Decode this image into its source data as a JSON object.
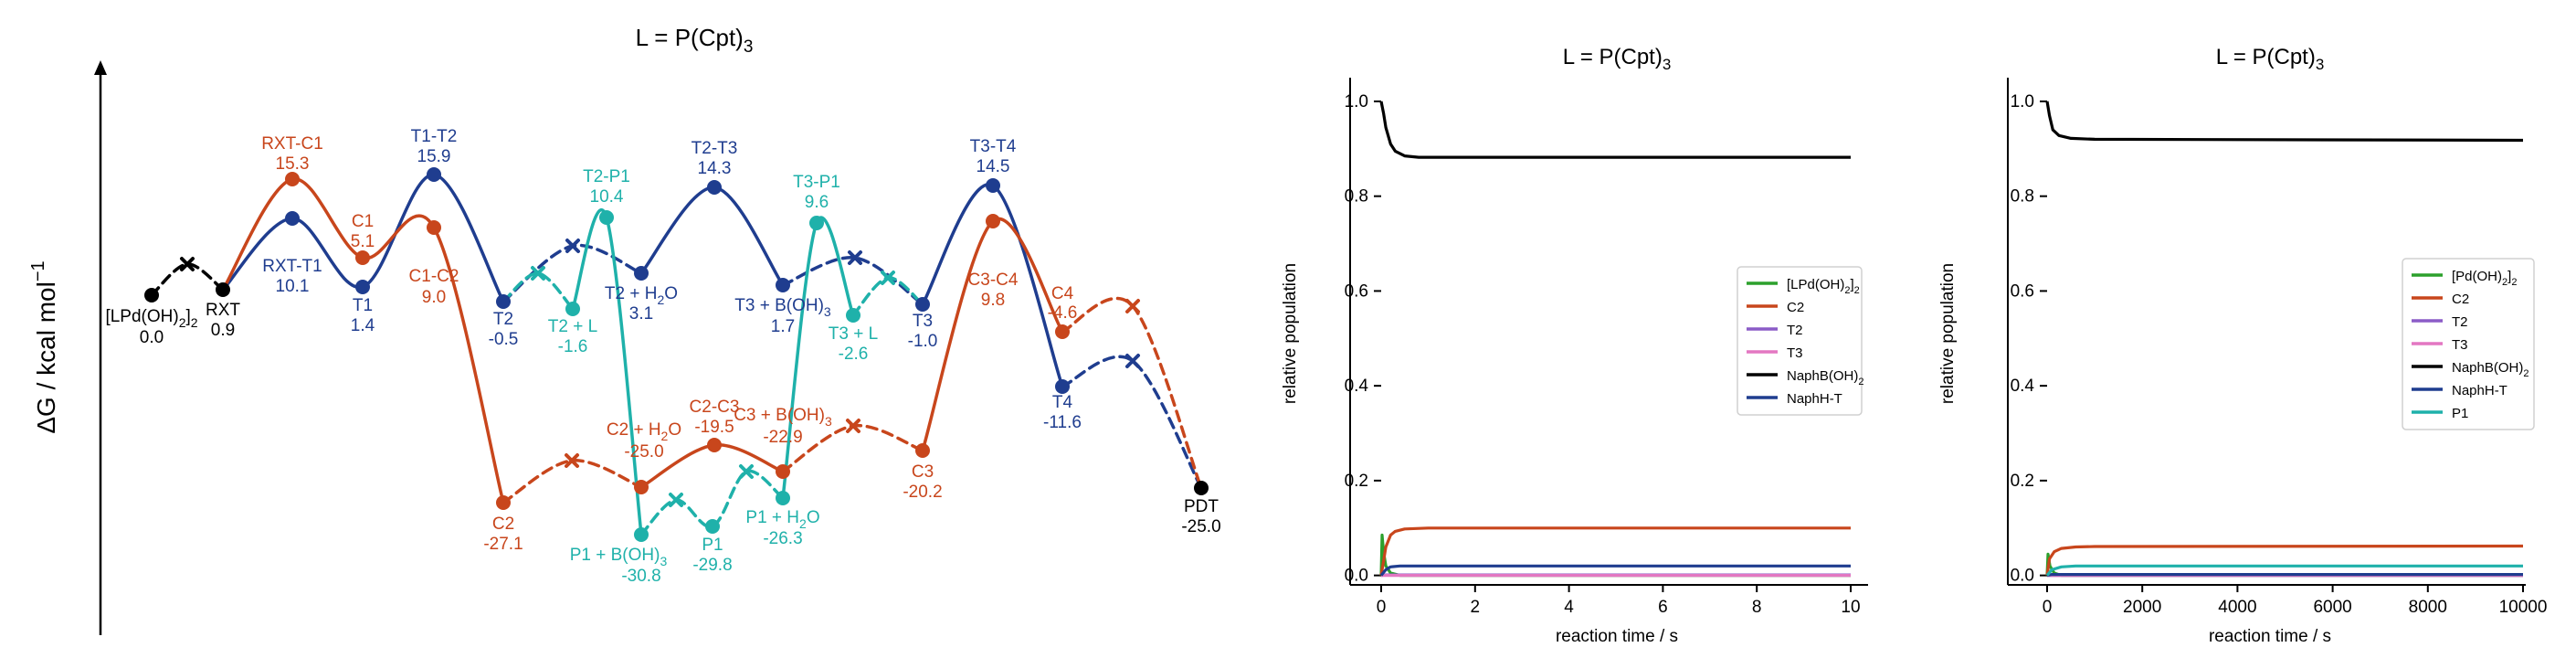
{
  "chart_data": [
    {
      "type": "energy-profile",
      "title": "L = P(Cpt)",
      "title_sub": "3",
      "ylabel": "ΔG / kcal mol",
      "ylabel_sup": "−1",
      "colors": {
        "black": "#000000",
        "blue": "#1f3d8f",
        "orange": "#c8461c",
        "teal": "#1fb1aa"
      },
      "nodes": [
        {
          "id": "lpd",
          "label": "[LPd(OH)",
          "sub": "2",
          "label_end": "]",
          "sub2": "2",
          "value": "0.0",
          "color": "black"
        },
        {
          "id": "rxt",
          "label": "RXT",
          "value": "0.9",
          "color": "black"
        },
        {
          "id": "rxtc1",
          "label": "RXT-C1",
          "value": "15.3",
          "color": "orange"
        },
        {
          "id": "c1",
          "label": "C1",
          "value": "5.1",
          "color": "orange"
        },
        {
          "id": "c1c2",
          "label": "C1-C2",
          "value": "9.0",
          "color": "orange"
        },
        {
          "id": "c2",
          "label": "C2",
          "value": "-27.1",
          "color": "orange"
        },
        {
          "id": "c2h2o",
          "label": "C2 + H",
          "sub": "2",
          "label_end": "O",
          "value": "-25.0",
          "color": "orange"
        },
        {
          "id": "c2c3",
          "label": "C2-C3",
          "value": "-19.5",
          "color": "orange"
        },
        {
          "id": "c3b",
          "label": "C3 + B(OH)",
          "sub": "3",
          "value": "-22.9",
          "color": "orange"
        },
        {
          "id": "c3",
          "label": "C3",
          "value": "-20.2",
          "color": "orange"
        },
        {
          "id": "c3c4",
          "label": "C3-C4",
          "value": "9.8",
          "color": "orange"
        },
        {
          "id": "c4",
          "label": "C4",
          "value": "-4.6",
          "color": "orange"
        },
        {
          "id": "rxtt1",
          "label": "RXT-T1",
          "value": "10.1",
          "color": "blue"
        },
        {
          "id": "t1",
          "label": "T1",
          "value": "1.4",
          "color": "blue"
        },
        {
          "id": "t1t2",
          "label": "T1-T2",
          "value": "15.9",
          "color": "blue"
        },
        {
          "id": "t2",
          "label": "T2",
          "value": "-0.5",
          "color": "blue"
        },
        {
          "id": "t2h2o",
          "label": "T2 + H",
          "sub": "2",
          "label_end": "O",
          "value": "3.1",
          "color": "blue"
        },
        {
          "id": "t2t3",
          "label": "T2-T3",
          "value": "14.3",
          "color": "blue"
        },
        {
          "id": "t3b",
          "label": "T3 + B(OH)",
          "sub": "3",
          "value": "1.7",
          "color": "blue"
        },
        {
          "id": "t3",
          "label": "T3",
          "value": "-1.0",
          "color": "blue"
        },
        {
          "id": "t3t4",
          "label": "T3-T4",
          "value": "14.5",
          "color": "blue"
        },
        {
          "id": "t4",
          "label": "T4",
          "value": "-11.6",
          "color": "blue"
        },
        {
          "id": "t2l",
          "label": "T2 + L",
          "value": "-1.6",
          "color": "teal"
        },
        {
          "id": "t2p1",
          "label": "T2-P1",
          "value": "10.4",
          "color": "teal"
        },
        {
          "id": "p1b",
          "label": "P1 + B(OH)",
          "sub": "3",
          "value": "-30.8",
          "color": "teal"
        },
        {
          "id": "p1",
          "label": "P1",
          "value": "-29.8",
          "color": "teal"
        },
        {
          "id": "p1h2o",
          "label": "P1 + H",
          "sub": "2",
          "label_end": "O",
          "value": "-26.3",
          "color": "teal"
        },
        {
          "id": "t3p1",
          "label": "T3-P1",
          "value": "9.6",
          "color": "teal"
        },
        {
          "id": "t3l",
          "label": "T3 + L",
          "value": "-2.6",
          "color": "teal"
        },
        {
          "id": "pdt",
          "label": "PDT",
          "value": "-25.0",
          "color": "black"
        }
      ]
    },
    {
      "type": "line",
      "title": "L = P(Cpt)",
      "title_sub": "3",
      "xlabel": "reaction time / s",
      "ylabel": "relative population",
      "xlim": [
        0,
        10
      ],
      "ylim": [
        -0.02,
        1.05
      ],
      "xticks": [
        0,
        2,
        4,
        6,
        8,
        10
      ],
      "xtick_labels": [
        "0",
        "2",
        "4",
        "6",
        "8",
        "10"
      ],
      "yticks": [
        0.0,
        0.2,
        0.4,
        0.6,
        0.8,
        1.0
      ],
      "ytick_labels": [
        "0.0",
        "0.2",
        "0.4",
        "0.6",
        "0.8",
        "1.0"
      ],
      "legend_position": "right",
      "series": [
        {
          "name": "[LPd(OH)",
          "sub": "2",
          "name_end": "]",
          "sub2": "2",
          "color": "#2ca02c",
          "points": [
            [
              0,
              0
            ],
            [
              0.02,
              0.085
            ],
            [
              0.05,
              0.05
            ],
            [
              0.1,
              0.02
            ],
            [
              0.2,
              0.005
            ],
            [
              0.4,
              0
            ],
            [
              10,
              0
            ]
          ]
        },
        {
          "name": "C2",
          "color": "#c8461c",
          "points": [
            [
              0,
              0
            ],
            [
              0.05,
              0.03
            ],
            [
              0.1,
              0.06
            ],
            [
              0.2,
              0.085
            ],
            [
              0.3,
              0.093
            ],
            [
              0.5,
              0.098
            ],
            [
              1,
              0.1
            ],
            [
              10,
              0.1
            ]
          ]
        },
        {
          "name": "T2",
          "color": "#8b5cc7",
          "points": [
            [
              0,
              0
            ],
            [
              0.1,
              0.001
            ],
            [
              10,
              0.001
            ]
          ]
        },
        {
          "name": "T3",
          "color": "#e377c2",
          "points": [
            [
              0,
              0
            ],
            [
              10,
              0
            ]
          ]
        },
        {
          "name": "NaphB(OH)",
          "sub": "2",
          "color": "#000000",
          "points": [
            [
              0,
              1.0
            ],
            [
              0.05,
              0.975
            ],
            [
              0.1,
              0.945
            ],
            [
              0.2,
              0.91
            ],
            [
              0.3,
              0.895
            ],
            [
              0.5,
              0.885
            ],
            [
              0.8,
              0.882
            ],
            [
              10,
              0.882
            ]
          ]
        },
        {
          "name": "NaphH-T",
          "color": "#1f3d8f",
          "points": [
            [
              0,
              0
            ],
            [
              0.1,
              0.012
            ],
            [
              0.2,
              0.018
            ],
            [
              0.4,
              0.02
            ],
            [
              10,
              0.02
            ]
          ]
        }
      ]
    },
    {
      "type": "line",
      "title": "L = P(Cpt)",
      "title_sub": "3",
      "xlabel": "reaction time / s",
      "ylabel": "relative population",
      "xlim": [
        0,
        10000
      ],
      "ylim": [
        -0.02,
        1.05
      ],
      "xticks": [
        0,
        2000,
        4000,
        6000,
        8000,
        10000
      ],
      "xtick_labels": [
        "0",
        "2000",
        "4000",
        "6000",
        "8000",
        "10000"
      ],
      "yticks": [
        0.0,
        0.2,
        0.4,
        0.6,
        0.8,
        1.0
      ],
      "ytick_labels": [
        "0.0",
        "0.2",
        "0.4",
        "0.6",
        "0.8",
        "1.0"
      ],
      "legend_position": "right",
      "series": [
        {
          "name": "[Pd(OH)",
          "sub": "2",
          "name_end": "]",
          "sub2": "2",
          "color": "#2ca02c",
          "points": [
            [
              0,
              0
            ],
            [
              20,
              0.045
            ],
            [
              60,
              0.02
            ],
            [
              150,
              0.005
            ],
            [
              300,
              0
            ],
            [
              10000,
              0
            ]
          ]
        },
        {
          "name": "C2",
          "color": "#c8461c",
          "points": [
            [
              0,
              0
            ],
            [
              50,
              0.035
            ],
            [
              150,
              0.05
            ],
            [
              300,
              0.057
            ],
            [
              600,
              0.06
            ],
            [
              1000,
              0.061
            ],
            [
              10000,
              0.062
            ]
          ]
        },
        {
          "name": "T2",
          "color": "#8b5cc7",
          "points": [
            [
              0,
              0
            ],
            [
              10000,
              0
            ]
          ]
        },
        {
          "name": "T3",
          "color": "#e377c2",
          "points": [
            [
              0,
              0
            ],
            [
              10000,
              0
            ]
          ]
        },
        {
          "name": "NaphB(OH)",
          "sub": "2",
          "color": "#000000",
          "points": [
            [
              0,
              1.0
            ],
            [
              50,
              0.97
            ],
            [
              120,
              0.94
            ],
            [
              250,
              0.928
            ],
            [
              500,
              0.922
            ],
            [
              1000,
              0.92
            ],
            [
              10000,
              0.918
            ]
          ]
        },
        {
          "name": "NaphH-T",
          "color": "#1f3d8f",
          "points": [
            [
              0,
              0
            ],
            [
              100,
              0.002
            ],
            [
              10000,
              0.002
            ]
          ]
        },
        {
          "name": "P1",
          "color": "#1fb1aa",
          "points": [
            [
              0,
              0
            ],
            [
              100,
              0.012
            ],
            [
              300,
              0.018
            ],
            [
              600,
              0.02
            ],
            [
              10000,
              0.02
            ]
          ]
        }
      ]
    }
  ]
}
